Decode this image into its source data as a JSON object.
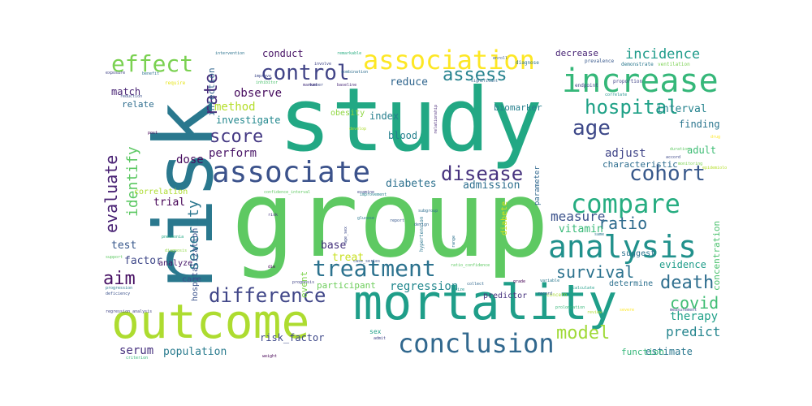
{
  "words": [
    {
      "text": "study",
      "color": "#22a884"
    },
    {
      "text": "group",
      "color": "#5ec962"
    },
    {
      "text": "risk",
      "color": "#2a788e"
    },
    {
      "text": "outcome",
      "color": "#addc30"
    },
    {
      "text": "mortality",
      "color": "#1f9e89"
    },
    {
      "text": "increase",
      "color": "#35b779"
    },
    {
      "text": "associate",
      "color": "#3b528b"
    },
    {
      "text": "association",
      "color": "#fde725"
    },
    {
      "text": "analysis",
      "color": "#21918c"
    },
    {
      "text": "compare",
      "color": "#27ad81"
    },
    {
      "text": "conclusion",
      "color": "#31688e"
    },
    {
      "text": "treatment",
      "color": "#2c728e"
    },
    {
      "text": "control",
      "color": "#414487"
    },
    {
      "text": "effect",
      "color": "#7ad151"
    },
    {
      "text": "hospital",
      "color": "#1fa187"
    },
    {
      "text": "disease",
      "color": "#46327e"
    },
    {
      "text": "age",
      "color": "#3e4989"
    },
    {
      "text": "cohort",
      "color": "#38598c"
    },
    {
      "text": "difference",
      "color": "#404688"
    },
    {
      "text": "death",
      "color": "#2e6e8e"
    },
    {
      "text": "score",
      "color": "#443983"
    },
    {
      "text": "assess",
      "color": "#26828e"
    },
    {
      "text": "incidence",
      "color": "#1e9b8a"
    },
    {
      "text": "evaluate",
      "color": "#482173"
    },
    {
      "text": "identify",
      "color": "#5cc863"
    },
    {
      "text": "rate",
      "color": "#472d7b"
    },
    {
      "text": "model",
      "color": "#a0da39"
    },
    {
      "text": "aim",
      "color": "#471063"
    },
    {
      "text": "covid",
      "color": "#3fbc73"
    },
    {
      "text": "measure",
      "color": "#3b528b"
    },
    {
      "text": "ratio",
      "color": "#2f6c8e"
    },
    {
      "text": "survival",
      "color": "#2c728e"
    },
    {
      "text": "severity",
      "color": "#2a768e"
    },
    {
      "text": "predict",
      "color": "#25858e"
    },
    {
      "text": "adjust",
      "color": "#404588"
    },
    {
      "text": "regression",
      "color": "#23888e"
    },
    {
      "text": "therapy",
      "color": "#1fa088"
    },
    {
      "text": "population",
      "color": "#297b8e"
    },
    {
      "text": "estimate",
      "color": "#2a778e"
    },
    {
      "text": "serum",
      "color": "#46307e"
    },
    {
      "text": "dose",
      "color": "#460b5e"
    },
    {
      "text": "trial",
      "color": "#440154"
    },
    {
      "text": "test",
      "color": "#38588c"
    },
    {
      "text": "factor",
      "color": "#3f4889"
    },
    {
      "text": "perform",
      "color": "#481467"
    },
    {
      "text": "method",
      "color": "#b5de2b"
    },
    {
      "text": "observe",
      "color": "#460b5e"
    },
    {
      "text": "reduce",
      "color": "#31668e"
    },
    {
      "text": "index",
      "color": "#277f8e"
    },
    {
      "text": "blood",
      "color": "#26818e"
    },
    {
      "text": "diabetes",
      "color": "#2d718e"
    },
    {
      "text": "admission",
      "color": "#2e6f8e"
    },
    {
      "text": "vitamin",
      "color": "#38b977"
    },
    {
      "text": "base",
      "color": "#45337d"
    },
    {
      "text": "treat",
      "color": "#c8e020"
    },
    {
      "text": "participant",
      "color": "#6ccd5a"
    },
    {
      "text": "event",
      "color": "#7fd34e"
    },
    {
      "text": "risk_factor",
      "color": "#3f4a8a"
    },
    {
      "text": "evidence",
      "color": "#1e9c89"
    },
    {
      "text": "concentration",
      "color": "#4ac16d"
    },
    {
      "text": "interval",
      "color": "#25838e"
    },
    {
      "text": "finding",
      "color": "#2b758e"
    },
    {
      "text": "adult",
      "color": "#3dbc74"
    },
    {
      "text": "characteristic",
      "color": "#2e6d8e"
    },
    {
      "text": "conduct",
      "color": "#471365"
    },
    {
      "text": "decrease",
      "color": "#482475"
    },
    {
      "text": "match",
      "color": "#482374"
    },
    {
      "text": "relate",
      "color": "#2e6d8e"
    },
    {
      "text": "investigate",
      "color": "#23888e"
    },
    {
      "text": "obesity",
      "color": "#90d743"
    },
    {
      "text": "infection",
      "color": "#31668e"
    },
    {
      "text": "hospitalization",
      "color": "#3b528b"
    },
    {
      "text": "correlation",
      "color": "#addc30"
    },
    {
      "text": "analyze",
      "color": "#48186a"
    },
    {
      "text": "care",
      "color": "#3d4d8a"
    },
    {
      "text": "predictor",
      "color": "#46327e"
    },
    {
      "text": "determine",
      "color": "#2d708e"
    },
    {
      "text": "function",
      "color": "#35b779"
    },
    {
      "text": "suggest",
      "color": "#2c738e"
    },
    {
      "text": "biomarker",
      "color": "#27808e"
    },
    {
      "text": "diabete",
      "color": "#d2e21b"
    },
    {
      "text": "parameter",
      "color": "#31688e"
    },
    {
      "text": "hypertension",
      "color": "#2a768e"
    },
    {
      "text": "concern",
      "color": "#a8db34"
    },
    {
      "text": "sex",
      "color": "#1fa088"
    },
    {
      "text": "age_sex",
      "color": "#3e4a89"
    },
    {
      "text": "endpoint",
      "color": "#404688"
    },
    {
      "text": "proportion",
      "color": "#414487"
    },
    {
      "text": "diagnose",
      "color": "#2c738e"
    },
    {
      "text": "prevalence",
      "color": "#38588c"
    },
    {
      "text": "demonstrate",
      "color": "#2a788e"
    },
    {
      "text": "ventilation",
      "color": "#7ad151"
    },
    {
      "text": "exposure",
      "color": "#414487"
    },
    {
      "text": "benefit",
      "color": "#2d708e"
    },
    {
      "text": "require",
      "color": "#e5e419"
    },
    {
      "text": "reduction",
      "color": "#3b528b"
    },
    {
      "text": "improve",
      "color": "#3e4989"
    },
    {
      "text": "intervention",
      "color": "#2c728e"
    },
    {
      "text": "remarkable",
      "color": "#27ad81"
    },
    {
      "text": "involve",
      "color": "#404588"
    },
    {
      "text": "combination",
      "color": "#2e6e8e"
    },
    {
      "text": "inhibitor",
      "color": "#4ac16d"
    },
    {
      "text": "number",
      "color": "#3e4a89"
    },
    {
      "text": "baseline",
      "color": "#482878"
    },
    {
      "text": "confidence_interval",
      "color": "#5ec962"
    },
    {
      "text": "examine",
      "color": "#3e4989"
    },
    {
      "text": "report",
      "color": "#38588c"
    },
    {
      "text": "risk",
      "color": "#46327e"
    },
    {
      "text": "pneumonia",
      "color": "#22a884"
    },
    {
      "text": "diagnosis",
      "color": "#8fd744"
    },
    {
      "text": "support",
      "color": "#5ec962"
    },
    {
      "text": "progression",
      "color": "#2a788e"
    },
    {
      "text": "deficiency",
      "color": "#3b528b"
    },
    {
      "text": "regression_analysis",
      "color": "#414487"
    },
    {
      "text": "criterion",
      "color": "#35b779"
    },
    {
      "text": "weight",
      "color": "#440154"
    },
    {
      "text": "severe",
      "color": "#fde725"
    },
    {
      "text": "prognosis",
      "color": "#414487"
    },
    {
      "text": "collect",
      "color": "#31688e"
    },
    {
      "text": "grade",
      "color": "#440154"
    },
    {
      "text": "variable",
      "color": "#2a788e"
    },
    {
      "text": "calculate",
      "color": "#1f9e89"
    },
    {
      "text": "record",
      "color": "#3b528b"
    },
    {
      "text": "prolongation",
      "color": "#35b779"
    },
    {
      "text": "review",
      "color": "#addc30"
    },
    {
      "text": "measurement",
      "color": "#404688"
    },
    {
      "text": "correlate",
      "color": "#21918c"
    },
    {
      "text": "duration",
      "color": "#5ec962"
    },
    {
      "text": "accord",
      "color": "#3e4989"
    },
    {
      "text": "monitoring",
      "color": "#7ad151"
    },
    {
      "text": "drug",
      "color": "#fde725"
    },
    {
      "text": "subgroup",
      "color": "#2e6e8e"
    },
    {
      "text": "design",
      "color": "#31688e"
    },
    {
      "text": "range",
      "color": "#2c728e"
    },
    {
      "text": "glucose",
      "color": "#2a788e"
    },
    {
      "text": "improvement",
      "color": "#26828e"
    },
    {
      "text": "develop",
      "color": "#addc30"
    },
    {
      "text": "relationship",
      "color": "#482878"
    },
    {
      "text": "significant",
      "color": "#31688e"
    },
    {
      "text": "enroll",
      "color": "#38598c"
    },
    {
      "text": "marker",
      "color": "#46327e"
    },
    {
      "text": "post",
      "color": "#440154"
    },
    {
      "text": "case_series",
      "color": "#3b528b"
    },
    {
      "text": "admit",
      "color": "#414487"
    },
    {
      "text": "die",
      "color": "#440154"
    },
    {
      "text": "size",
      "color": "#21918c"
    },
    {
      "text": "ratio_confidence",
      "color": "#5ec962"
    },
    {
      "text": "same",
      "color": "#2a788e"
    },
    {
      "text": "epidemiology",
      "color": "#b5de2b"
    }
  ]
}
